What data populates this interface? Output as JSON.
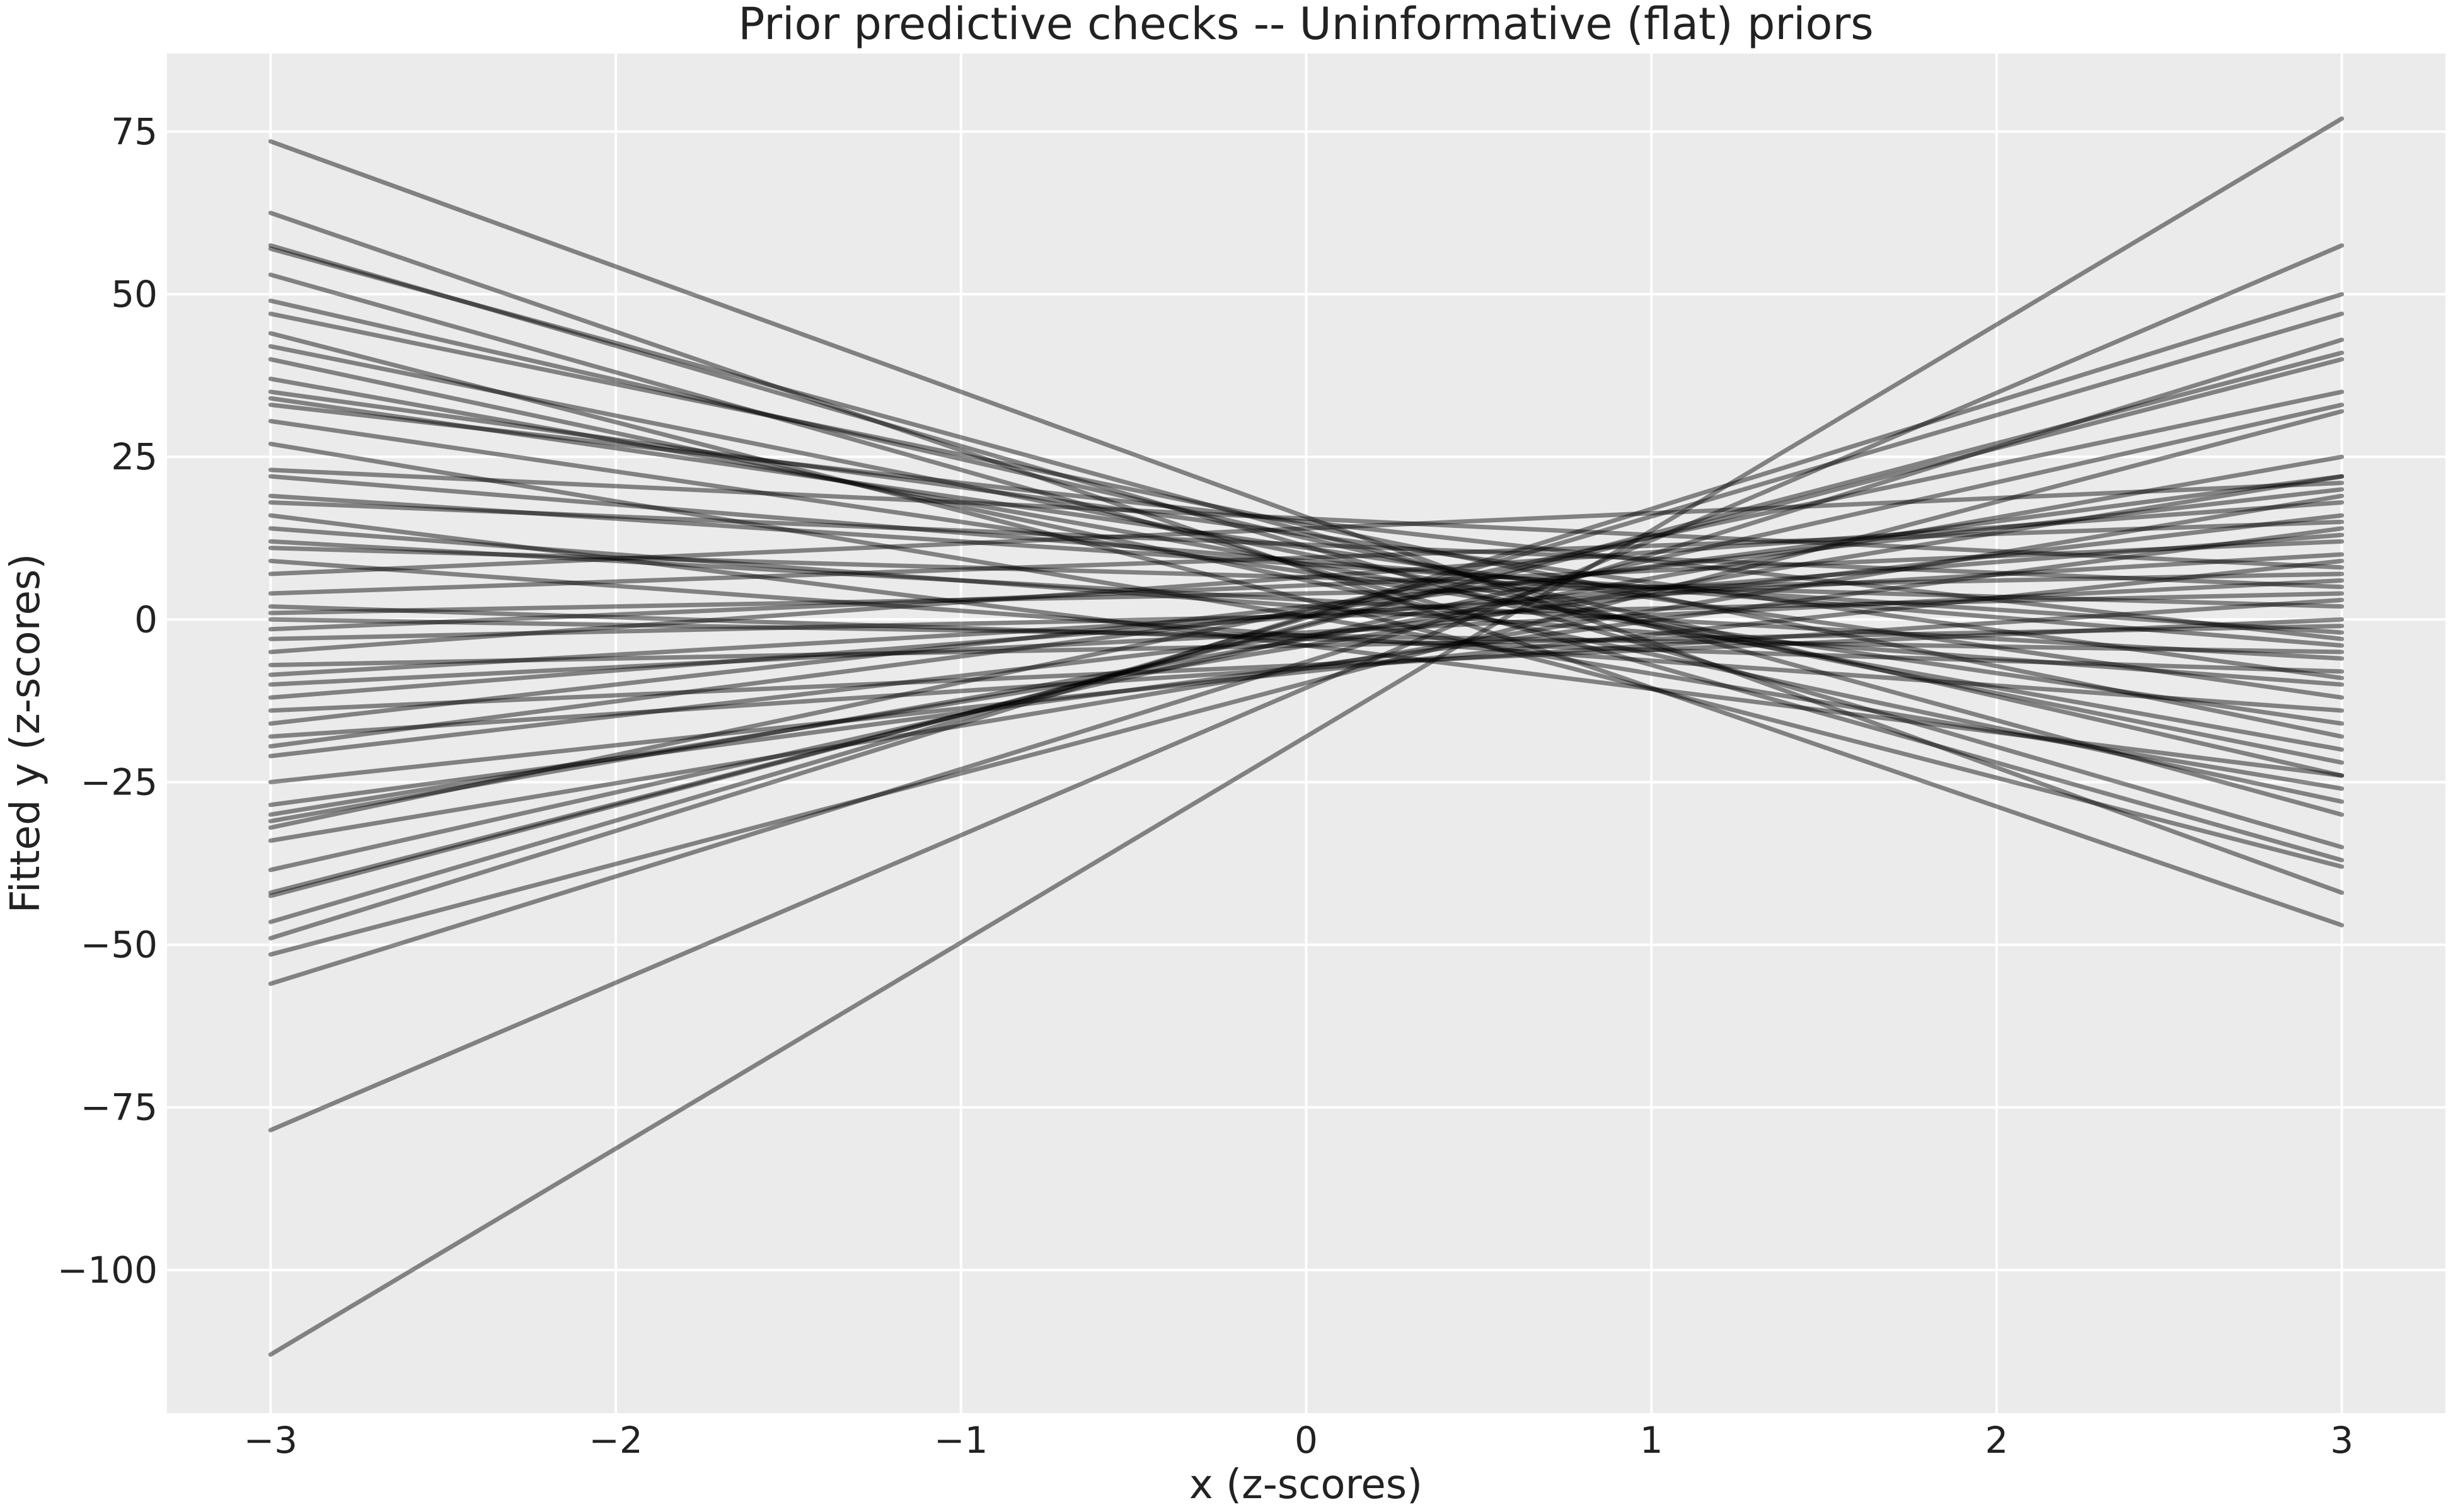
{
  "chart_data": {
    "type": "line",
    "title": "Prior predictive checks -- Uninformative (flat) priors",
    "xlabel": "x (z-scores)",
    "ylabel": "Fitted y (z-scores)",
    "xlim": [
      -3.3,
      3.3
    ],
    "ylim": [
      -122,
      87
    ],
    "xticks": [
      -3,
      -2,
      -1,
      0,
      1,
      2,
      3
    ],
    "xtick_labels": [
      "−3",
      "−2",
      "−1",
      "0",
      "1",
      "2",
      "3"
    ],
    "yticks": [
      75,
      50,
      25,
      0,
      -25,
      -50,
      -75,
      -100
    ],
    "ytick_labels": [
      "75",
      "50",
      "25",
      "0",
      "−25",
      "−50",
      "−75",
      "−100"
    ],
    "grid": true,
    "background": "#ebebeb",
    "grid_color": "#ffffff",
    "line_color": "#000000",
    "line_opacity": 0.45,
    "x": [
      -3,
      3
    ],
    "series": [
      {
        "values": [
          73.5,
          -42
        ]
      },
      {
        "values": [
          62.5,
          -47
        ]
      },
      {
        "values": [
          57.5,
          -35
        ]
      },
      {
        "values": [
          57,
          -30
        ]
      },
      {
        "values": [
          53,
          -37
        ]
      },
      {
        "values": [
          49,
          -24
        ]
      },
      {
        "values": [
          47,
          -18
        ]
      },
      {
        "values": [
          44,
          -38
        ]
      },
      {
        "values": [
          42,
          -22
        ]
      },
      {
        "values": [
          40,
          -28
        ]
      },
      {
        "values": [
          37,
          -20
        ]
      },
      {
        "values": [
          35,
          -9
        ]
      },
      {
        "values": [
          34,
          -12
        ]
      },
      {
        "values": [
          33,
          -3
        ]
      },
      {
        "values": [
          30.5,
          -16
        ]
      },
      {
        "values": [
          27,
          -26
        ]
      },
      {
        "values": [
          23,
          8
        ]
      },
      {
        "values": [
          22,
          -4
        ]
      },
      {
        "values": [
          19,
          -2
        ]
      },
      {
        "values": [
          18,
          5
        ]
      },
      {
        "values": [
          16,
          -24
        ]
      },
      {
        "values": [
          14,
          -10
        ]
      },
      {
        "values": [
          12,
          -6
        ]
      },
      {
        "values": [
          11,
          2
        ]
      },
      {
        "values": [
          9,
          -14
        ]
      },
      {
        "values": [
          7,
          21
        ]
      },
      {
        "values": [
          4,
          15
        ]
      },
      {
        "values": [
          2,
          -8
        ]
      },
      {
        "values": [
          1,
          7
        ]
      },
      {
        "values": [
          0,
          -5
        ]
      },
      {
        "values": [
          -1.5,
          12
        ]
      },
      {
        "values": [
          -3,
          4
        ]
      },
      {
        "values": [
          -5,
          18
        ]
      },
      {
        "values": [
          -7,
          -1
        ]
      },
      {
        "values": [
          -8.5,
          10
        ]
      },
      {
        "values": [
          -10,
          6
        ]
      },
      {
        "values": [
          -12,
          13
        ]
      },
      {
        "values": [
          -14,
          0
        ]
      },
      {
        "values": [
          -16,
          20
        ]
      },
      {
        "values": [
          -18,
          3
        ]
      },
      {
        "values": [
          -19.5,
          22
        ]
      },
      {
        "values": [
          -21,
          16
        ]
      },
      {
        "values": [
          -25,
          9
        ]
      },
      {
        "values": [
          -28.5,
          14
        ]
      },
      {
        "values": [
          -30,
          22
        ]
      },
      {
        "values": [
          -31,
          25
        ]
      },
      {
        "values": [
          -32,
          35
        ]
      },
      {
        "values": [
          -34,
          19
        ]
      },
      {
        "values": [
          -38.5,
          33
        ]
      },
      {
        "values": [
          -42,
          40
        ]
      },
      {
        "values": [
          -42.5,
          41
        ]
      },
      {
        "values": [
          -46.5,
          47
        ]
      },
      {
        "values": [
          -49,
          50
        ]
      },
      {
        "values": [
          -51.5,
          32
        ]
      },
      {
        "values": [
          -56,
          43
        ]
      },
      {
        "values": [
          -78.5,
          57.5
        ]
      },
      {
        "values": [
          -113,
          77
        ]
      }
    ]
  }
}
